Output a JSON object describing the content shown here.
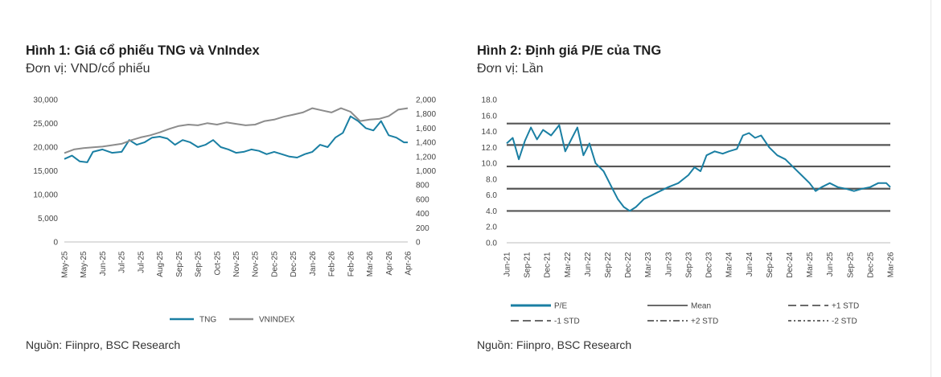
{
  "chart_data": [
    {
      "type": "line",
      "title": "Hình 1: Giá cổ phiếu TNG và VnIndex",
      "subtitle": "Đơn vị: VND/cổ phiếu",
      "source": "Nguồn: Fiinpro, BSC Research",
      "x_ticks": [
        "May-25",
        "May-25",
        "Jun-25",
        "Jul-25",
        "Jul-25",
        "Aug-25",
        "Sep-25",
        "Sep-25",
        "Oct-25",
        "Nov-25",
        "Nov-25",
        "Dec-25",
        "Dec-25",
        "Jan-26",
        "Feb-26",
        "Feb-26",
        "Mar-26",
        "Apr-26",
        "Apr-26"
      ],
      "y_left": {
        "ticks": [
          "0",
          "5,000",
          "10,000",
          "15,000",
          "20,000",
          "25,000",
          "30,000"
        ],
        "range": [
          0,
          30000
        ]
      },
      "y_right": {
        "ticks": [
          "0",
          "200",
          "400",
          "600",
          "800",
          "1,000",
          "1,200",
          "1,400",
          "1,600",
          "1,800",
          "2,000"
        ],
        "range": [
          0,
          2000
        ]
      },
      "series": [
        {
          "name": "TNG",
          "axis": "left",
          "color": "#1a7fa3",
          "points": [
            [
              0,
              17500
            ],
            [
              0.4,
              18200
            ],
            [
              0.8,
              17000
            ],
            [
              1.2,
              16800
            ],
            [
              1.5,
              19000
            ],
            [
              2,
              19500
            ],
            [
              2.5,
              18800
            ],
            [
              3,
              19000
            ],
            [
              3.4,
              21500
            ],
            [
              3.8,
              20500
            ],
            [
              4.2,
              21000
            ],
            [
              4.6,
              22000
            ],
            [
              5,
              22200
            ],
            [
              5.4,
              21800
            ],
            [
              5.8,
              20500
            ],
            [
              6.2,
              21500
            ],
            [
              6.6,
              21000
            ],
            [
              7,
              20000
            ],
            [
              7.4,
              20500
            ],
            [
              7.8,
              21500
            ],
            [
              8.2,
              20000
            ],
            [
              8.6,
              19500
            ],
            [
              9,
              18800
            ],
            [
              9.4,
              19000
            ],
            [
              9.8,
              19500
            ],
            [
              10.2,
              19200
            ],
            [
              10.6,
              18500
            ],
            [
              11,
              19000
            ],
            [
              11.4,
              18500
            ],
            [
              11.8,
              18000
            ],
            [
              12.2,
              17800
            ],
            [
              12.6,
              18500
            ],
            [
              13,
              19000
            ],
            [
              13.4,
              20500
            ],
            [
              13.8,
              20000
            ],
            [
              14.2,
              22000
            ],
            [
              14.6,
              23000
            ],
            [
              15,
              26500
            ],
            [
              15.4,
              25500
            ],
            [
              15.8,
              24000
            ],
            [
              16.2,
              23500
            ],
            [
              16.6,
              25500
            ],
            [
              17,
              22500
            ],
            [
              17.4,
              22000
            ],
            [
              17.8,
              21000
            ],
            [
              18,
              21000
            ]
          ]
        },
        {
          "name": "VNINDEX",
          "axis": "right",
          "color": "#8c8c8c",
          "points": [
            [
              0,
              1250
            ],
            [
              0.5,
              1300
            ],
            [
              1,
              1320
            ],
            [
              1.5,
              1330
            ],
            [
              2,
              1340
            ],
            [
              2.5,
              1360
            ],
            [
              3,
              1380
            ],
            [
              3.5,
              1430
            ],
            [
              4,
              1470
            ],
            [
              4.5,
              1500
            ],
            [
              5,
              1540
            ],
            [
              5.5,
              1590
            ],
            [
              6,
              1630
            ],
            [
              6.5,
              1650
            ],
            [
              7,
              1640
            ],
            [
              7.5,
              1670
            ],
            [
              8,
              1650
            ],
            [
              8.5,
              1680
            ],
            [
              9,
              1660
            ],
            [
              9.5,
              1640
            ],
            [
              10,
              1650
            ],
            [
              10.5,
              1700
            ],
            [
              11,
              1720
            ],
            [
              11.5,
              1760
            ],
            [
              12,
              1790
            ],
            [
              12.5,
              1820
            ],
            [
              13,
              1880
            ],
            [
              13.5,
              1850
            ],
            [
              14,
              1820
            ],
            [
              14.5,
              1880
            ],
            [
              15,
              1830
            ],
            [
              15.5,
              1700
            ],
            [
              16,
              1720
            ],
            [
              16.5,
              1730
            ],
            [
              17,
              1770
            ],
            [
              17.5,
              1860
            ],
            [
              18,
              1880
            ]
          ]
        }
      ],
      "legend": [
        "TNG",
        "VNINDEX"
      ],
      "legend_position": "bottom"
    },
    {
      "type": "line",
      "title": "Hình 2: Định giá P/E của TNG",
      "subtitle": "Đơn vị: Lần",
      "source": "Nguồn: Fiinpro, BSC Research",
      "x_ticks": [
        "Jun-21",
        "Sep-21",
        "Dec-21",
        "Mar-22",
        "Jun-22",
        "Sep-22",
        "Dec-22",
        "Mar-23",
        "Jun-23",
        "Sep-23",
        "Dec-23",
        "Mar-24",
        "Jun-24",
        "Sep-24",
        "Dec-24",
        "Mar-25",
        "Jun-25",
        "Sep-25",
        "Dec-25",
        "Mar-26"
      ],
      "y": {
        "ticks": [
          "0.0",
          "2.0",
          "4.0",
          "6.0",
          "8.0",
          "10.0",
          "12.0",
          "14.0",
          "16.0",
          "18.0"
        ],
        "range": [
          0,
          18
        ]
      },
      "series": [
        {
          "name": "P/E",
          "color": "#1a7fa3",
          "points": [
            [
              0,
              12.5
            ],
            [
              0.3,
              13.2
            ],
            [
              0.6,
              10.5
            ],
            [
              0.9,
              12.8
            ],
            [
              1.2,
              14.5
            ],
            [
              1.5,
              13
            ],
            [
              1.8,
              14.2
            ],
            [
              2.2,
              13.5
            ],
            [
              2.6,
              14.8
            ],
            [
              2.9,
              11.5
            ],
            [
              3.2,
              13
            ],
            [
              3.5,
              14.5
            ],
            [
              3.8,
              11
            ],
            [
              4.1,
              12.5
            ],
            [
              4.4,
              10
            ],
            [
              4.8,
              9
            ],
            [
              5.2,
              7
            ],
            [
              5.5,
              5.5
            ],
            [
              5.8,
              4.5
            ],
            [
              6.1,
              4
            ],
            [
              6.4,
              4.5
            ],
            [
              6.8,
              5.5
            ],
            [
              7.2,
              6
            ],
            [
              7.6,
              6.5
            ],
            [
              8,
              7
            ],
            [
              8.5,
              7.5
            ],
            [
              9,
              8.5
            ],
            [
              9.3,
              9.5
            ],
            [
              9.6,
              9
            ],
            [
              9.9,
              11
            ],
            [
              10.3,
              11.5
            ],
            [
              10.7,
              11.2
            ],
            [
              11,
              11.5
            ],
            [
              11.4,
              11.8
            ],
            [
              11.7,
              13.5
            ],
            [
              12,
              13.8
            ],
            [
              12.3,
              13.2
            ],
            [
              12.6,
              13.5
            ],
            [
              13,
              12
            ],
            [
              13.4,
              11
            ],
            [
              13.8,
              10.5
            ],
            [
              14.2,
              9.5
            ],
            [
              14.6,
              8.5
            ],
            [
              15,
              7.5
            ],
            [
              15.3,
              6.5
            ],
            [
              15.6,
              7
            ],
            [
              16,
              7.5
            ],
            [
              16.4,
              7
            ],
            [
              16.8,
              6.8
            ],
            [
              17.2,
              6.5
            ],
            [
              17.6,
              6.8
            ],
            [
              18,
              7
            ],
            [
              18.4,
              7.5
            ],
            [
              18.8,
              7.5
            ],
            [
              19,
              7
            ]
          ]
        },
        {
          "name": "Mean",
          "color": "#555555",
          "value": 9.6
        },
        {
          "name": "+1 STD",
          "color": "#555555",
          "value": 12.3
        },
        {
          "name": "-1 STD",
          "color": "#555555",
          "value": 6.8
        },
        {
          "name": "+2 STD",
          "color": "#555555",
          "value": 15.0
        },
        {
          "name": "-2 STD",
          "color": "#555555",
          "value": 4.0
        }
      ],
      "legend": [
        "P/E",
        "Mean",
        "+1 STD",
        "-1 STD",
        "+2 STD",
        "-2 STD"
      ],
      "legend_position": "bottom"
    }
  ]
}
